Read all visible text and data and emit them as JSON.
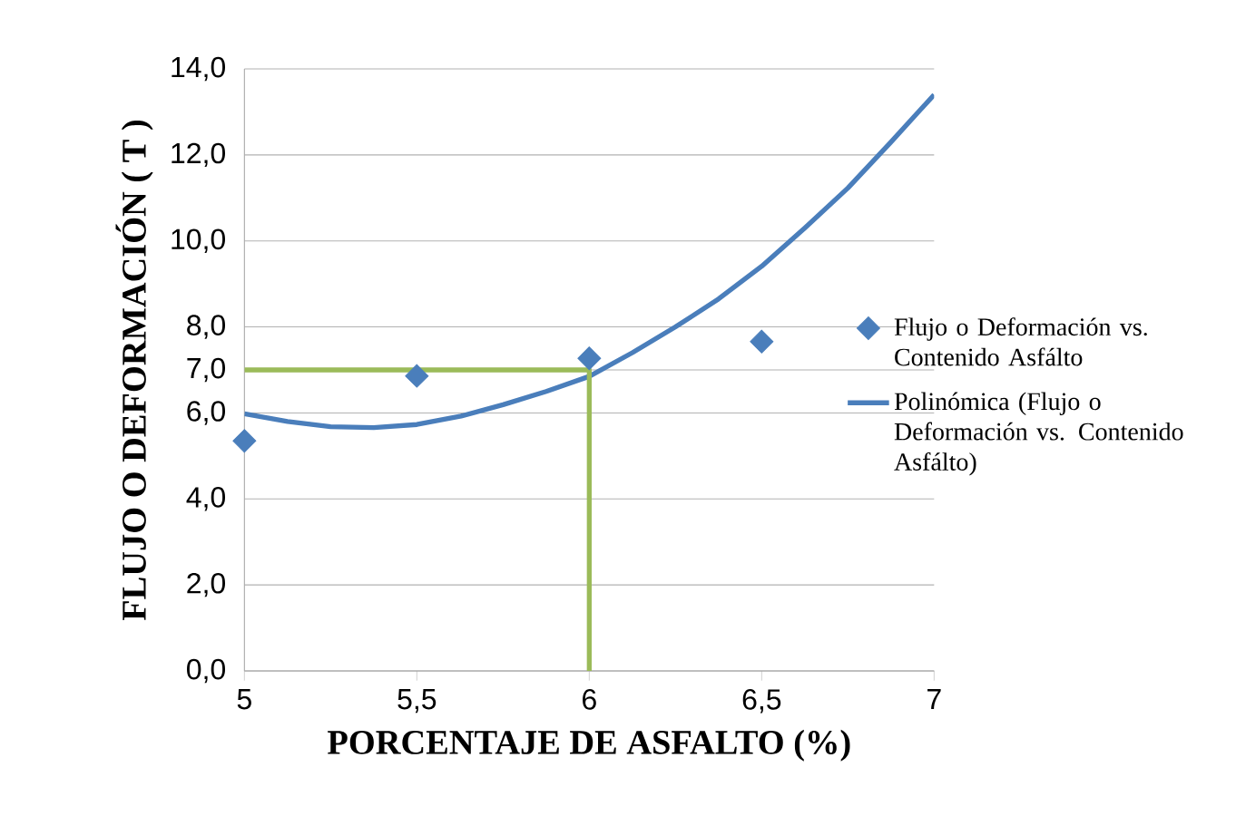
{
  "chart_data": {
    "type": "scatter",
    "xlabel": "PORCENTAJE DE ASFALTO (%)",
    "ylabel": "FLUJO O DEFORMACIÓN ( T )",
    "x": [
      5,
      5.5,
      6,
      6.5
    ],
    "series": [
      {
        "name": "Flujo o Deformación vs. Contenido Asfálto",
        "type": "scatter",
        "color": "#4a7ebb",
        "marker": "diamond",
        "values": [
          5.35,
          6.86,
          7.27,
          7.66
        ]
      },
      {
        "name": "Polinómica (Flujo o Deformación vs. Contenido Asfálto)",
        "type": "line",
        "color": "#4a7ebb",
        "marker": "none",
        "x": [
          5,
          5.125,
          5.25,
          5.375,
          5.5,
          5.625,
          5.75,
          5.875,
          6,
          6.125,
          6.25,
          6.375,
          6.5,
          6.625,
          6.75,
          6.875,
          7
        ],
        "values": [
          5.98,
          5.8,
          5.68,
          5.66,
          5.73,
          5.92,
          6.19,
          6.5,
          6.85,
          7.4,
          8.0,
          8.65,
          9.41,
          10.3,
          11.23,
          12.3,
          13.4
        ]
      },
      {
        "type": "line",
        "color": "#9bbb59",
        "marker": "none",
        "x": [
          5,
          6,
          6
        ],
        "values": [
          7,
          7,
          0
        ]
      }
    ],
    "xlim": [
      5,
      7
    ],
    "ylim": [
      0,
      14
    ],
    "xticks": [
      5,
      {
        "value": 5.5,
        "label": "5,5"
      },
      6,
      {
        "value": 6.5,
        "label": "6,5"
      },
      7
    ],
    "yticks": [
      {
        "value": 0,
        "label": "0,0"
      },
      {
        "value": 2,
        "label": "2,0"
      },
      {
        "value": 4,
        "label": "4,0"
      },
      {
        "value": 6,
        "label": "6,0"
      },
      {
        "value": 7,
        "label": "7,0"
      },
      {
        "value": 8,
        "label": "8,0"
      },
      {
        "value": 10,
        "label": "10,0"
      },
      {
        "value": 12,
        "label": "12,0"
      },
      {
        "value": 14,
        "label": "14,0"
      }
    ],
    "grid": "y",
    "legend": "right"
  }
}
